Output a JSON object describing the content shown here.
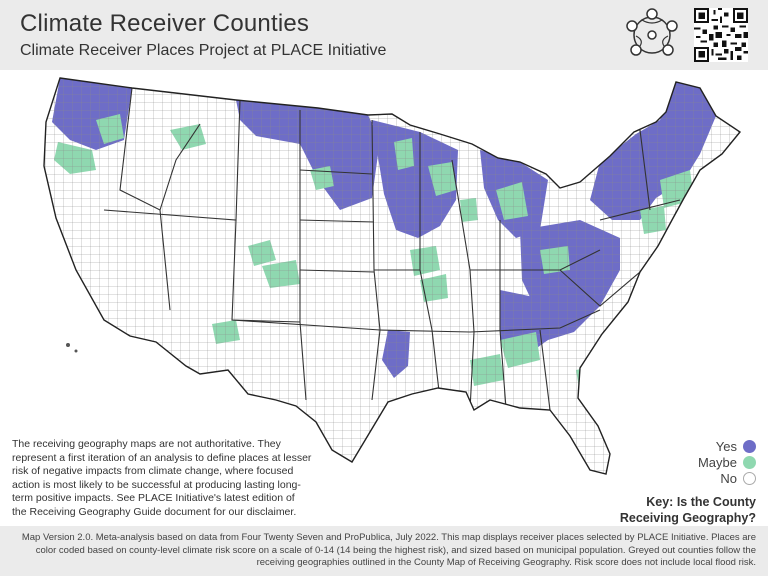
{
  "header": {
    "title": "Climate Receiver Counties",
    "subtitle": "Climate Receiver Places Project at PLACE Initiative"
  },
  "map": {
    "region": "Contiguous United States, county level",
    "colors": {
      "yes": "#6e6dc7",
      "maybe": "#8fd8b0",
      "no": "#ffffff",
      "border": "#6b6b6b"
    }
  },
  "disclaimer": {
    "text": "The receiving geography maps are not authoritative. They represent a first iteration of an analysis to define places at lesser risk of negative impacts from climate change, where focused action is most likely to be successful at producing lasting long-term positive impacts. See PLACE Initiative's latest edition of the Receiving Geography Guide document for our disclaimer."
  },
  "legend": {
    "items": [
      {
        "label": "Yes",
        "color": "#6e6dc7"
      },
      {
        "label": "Maybe",
        "color": "#8fd8b0"
      },
      {
        "label": "No",
        "color": "#ffffff"
      }
    ],
    "title_line1": "Key: Is the County",
    "title_line2": "Receiving Geography?"
  },
  "footer": {
    "text": "Map Version 2.0. Meta-analysis based on data from Four Twenty Seven and ProPublica, July 2022. This map displays receiver places selected by PLACE Initiative. Places are color coded based on county-level climate risk score on a scale of 0-14 (14 being the highest risk), and sized based on municipal population. Greyed out counties follow the receiving geographies outlined in the County Map of Receiving Geography. Risk score does not include local flood risk."
  }
}
